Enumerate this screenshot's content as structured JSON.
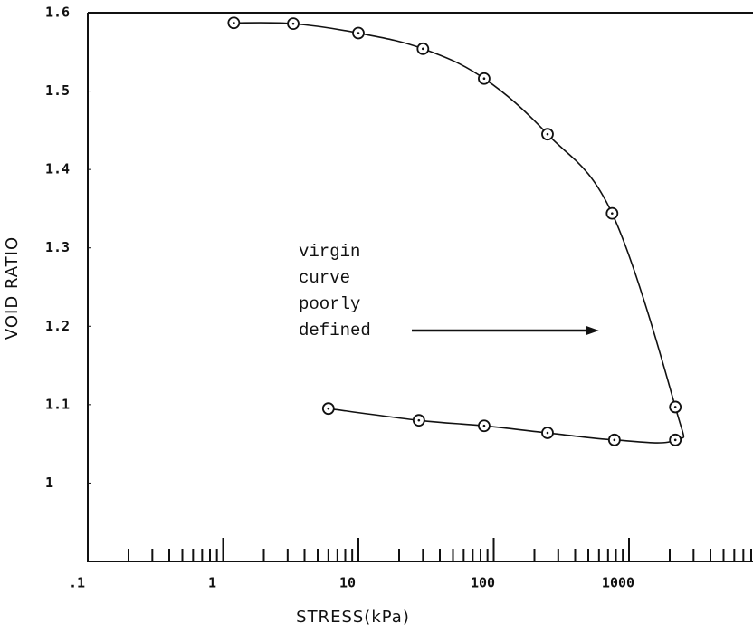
{
  "chart_data": {
    "type": "line",
    "xlabel": "STRESS(kPa)",
    "ylabel": "VOID RATIO",
    "x_log": true,
    "xlim": [
      0.1,
      8000
    ],
    "ylim": [
      0.9,
      1.6
    ],
    "xticks": [
      {
        "value": 0.1,
        "label": ".1"
      },
      1,
      10,
      100,
      1000
    ],
    "xminor_ticks": [
      0.2,
      0.3,
      0.4,
      0.5,
      0.6,
      0.7,
      0.8,
      0.9,
      2,
      3,
      4,
      5,
      6,
      7,
      8,
      9,
      20,
      30,
      40,
      50,
      60,
      70,
      80,
      90,
      200,
      300,
      400,
      500,
      600,
      700,
      800,
      900,
      2000,
      3000,
      4000,
      5000,
      6000,
      7000,
      8000
    ],
    "yticks": [
      1,
      1.1,
      1.2,
      1.3,
      1.4,
      1.5,
      1.6
    ],
    "annotation": {
      "text": [
        "virgin",
        "curve",
        "poorly",
        "defined"
      ],
      "x": 600
    },
    "series": [
      {
        "color": "#111111",
        "x": [
          1.2,
          3.3,
          10,
          30,
          85,
          250,
          750,
          2200,
          2200,
          780,
          250,
          85,
          28,
          6
        ],
        "values": [
          1.587,
          1.586,
          1.574,
          1.554,
          1.516,
          1.445,
          1.344,
          1.097,
          1.055,
          1.055,
          1.064,
          1.073,
          1.08,
          1.095
        ]
      }
    ]
  }
}
